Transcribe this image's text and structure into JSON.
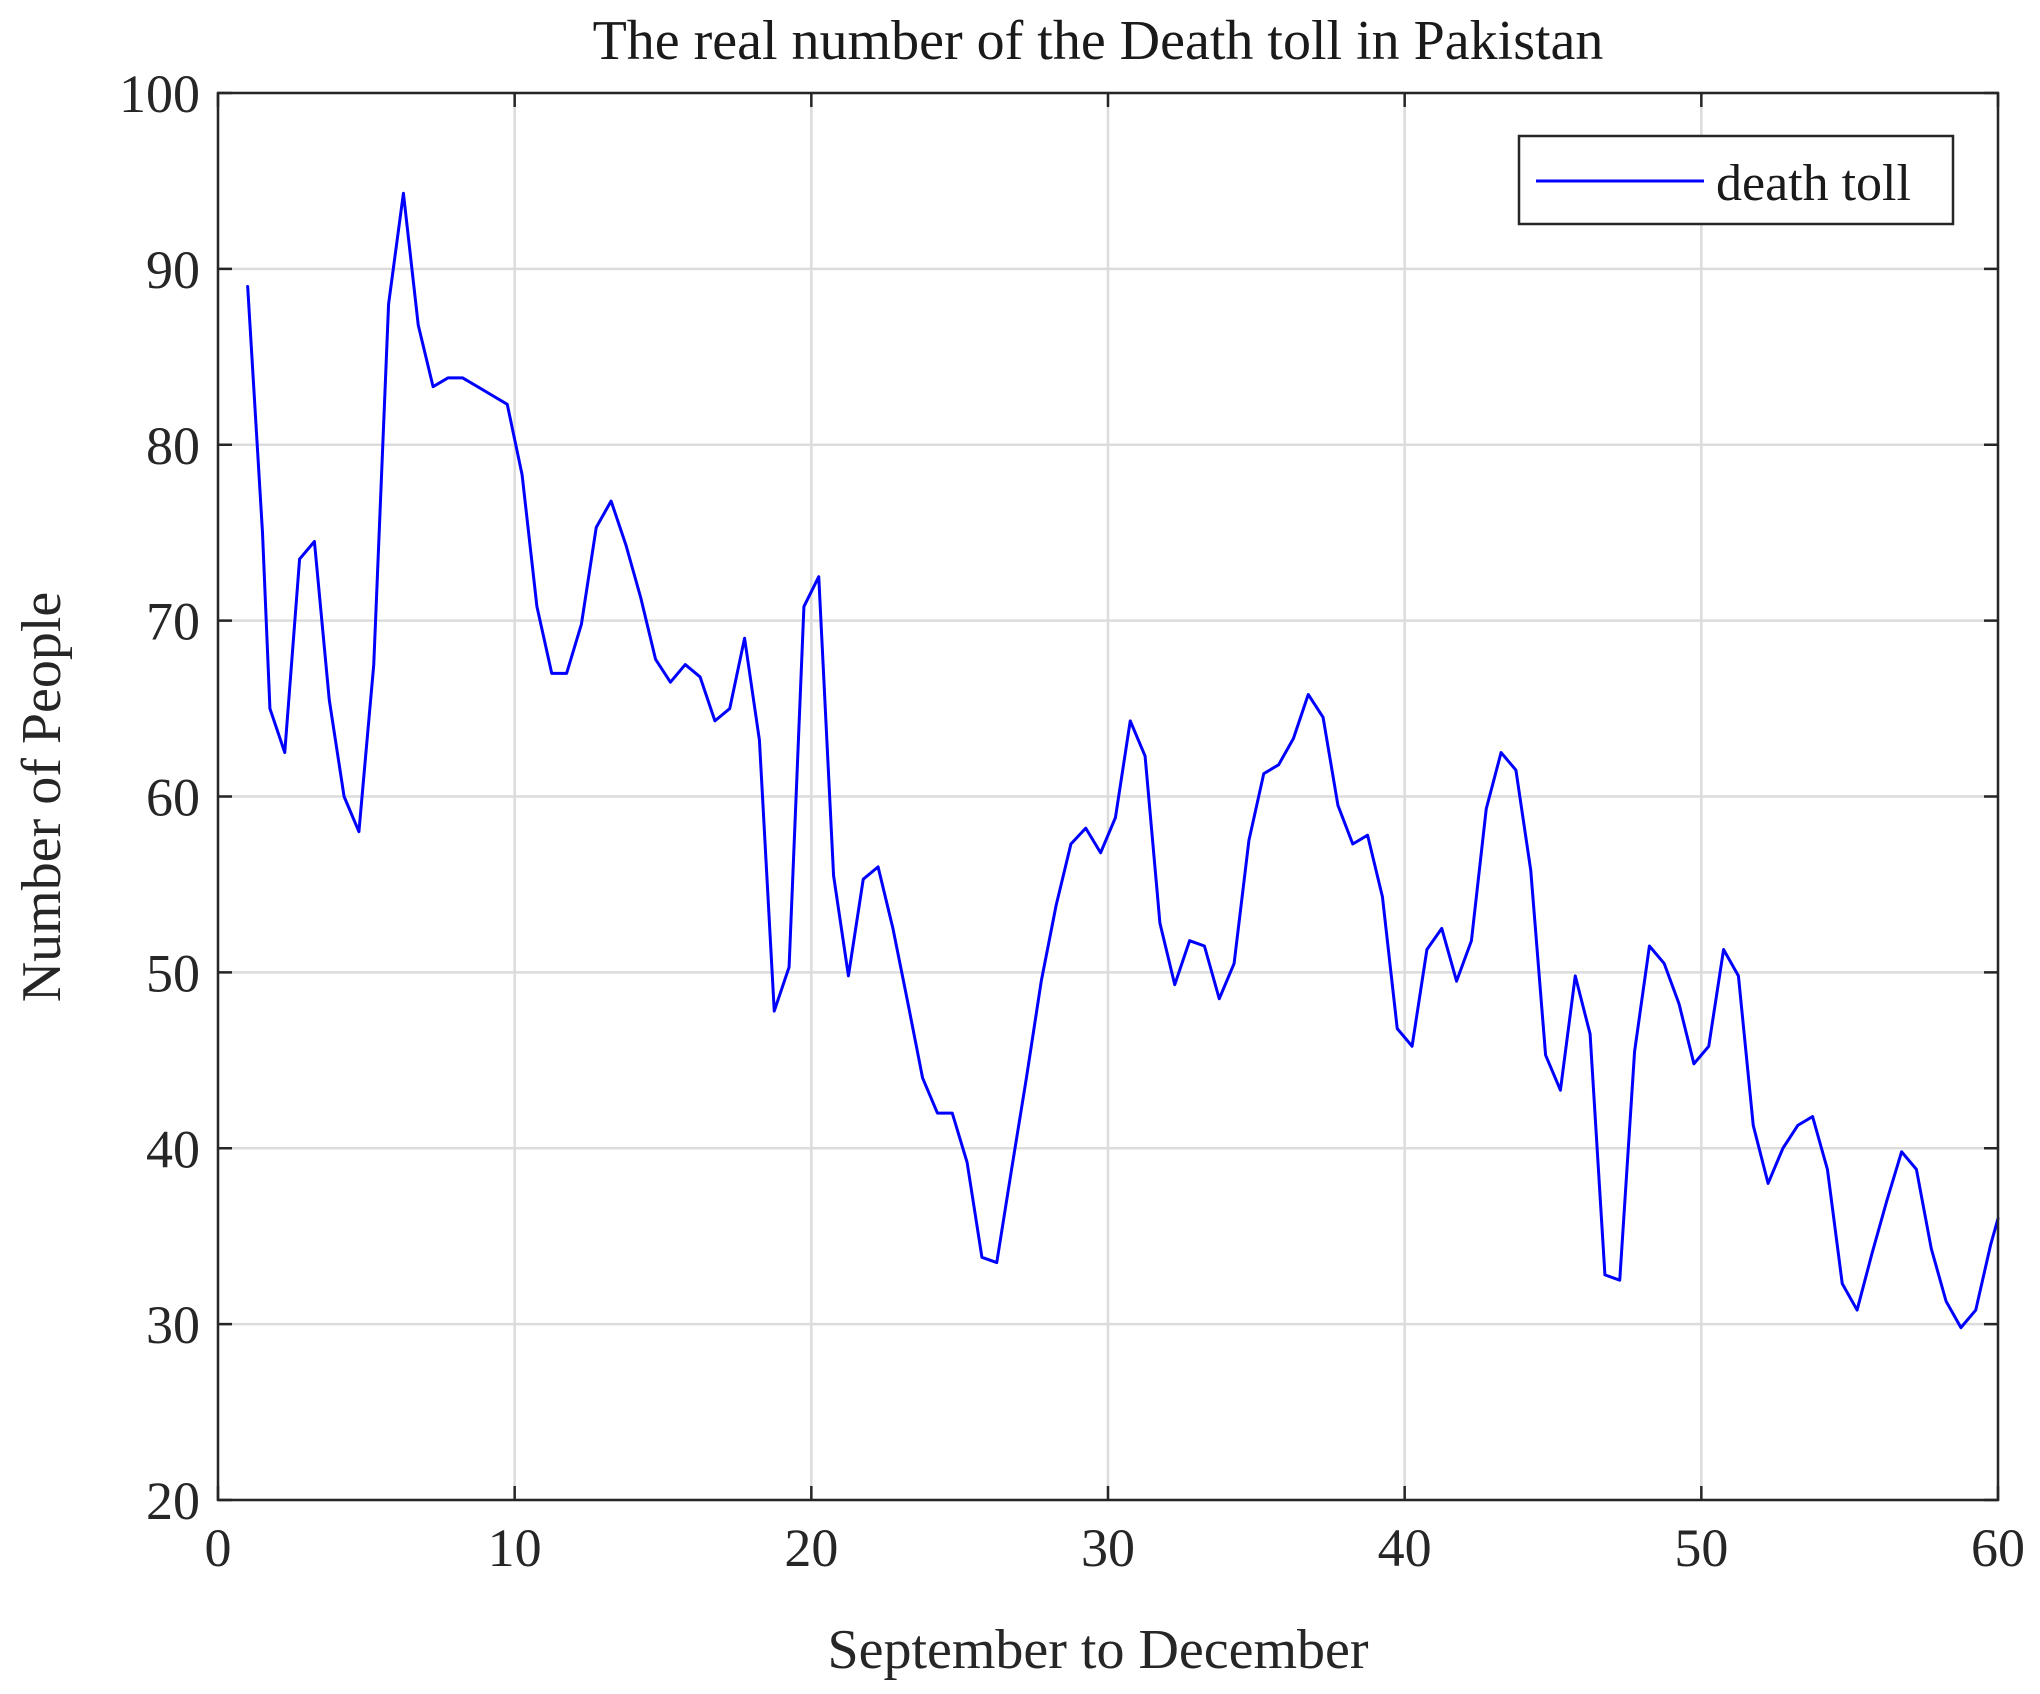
{
  "chart_data": {
    "type": "line",
    "title": "The real number of the Death toll in Pakistan",
    "xlabel": "September to December",
    "ylabel": "Number of People",
    "xlim": [
      0,
      60
    ],
    "ylim": [
      20,
      100
    ],
    "xticks": [
      0,
      10,
      20,
      30,
      40,
      50,
      60
    ],
    "yticks": [
      20,
      30,
      40,
      50,
      60,
      70,
      80,
      90,
      100
    ],
    "grid": true,
    "legend_position": "top-right",
    "series": [
      {
        "name": "death toll",
        "color": "#0000ff",
        "x": [
          1.0,
          1.5,
          1.75,
          2.25,
          2.75,
          3.25,
          3.75,
          4.25,
          4.75,
          5.25,
          5.75,
          6.25,
          6.75,
          7.25,
          7.75,
          8.25,
          8.75,
          9.25,
          9.75,
          10.25,
          10.75,
          11.25,
          11.75,
          12.25,
          12.75,
          13.25,
          13.75,
          14.25,
          14.75,
          15.25,
          15.75,
          16.25,
          16.75,
          17.25,
          17.75,
          18.25,
          18.75,
          19.25,
          19.75,
          20.25,
          20.75,
          21.25,
          21.75,
          22.25,
          22.75,
          23.25,
          23.75,
          24.25,
          24.75,
          25.25,
          25.75,
          26.25,
          26.75,
          27.25,
          27.75,
          28.25,
          28.75,
          29.25,
          29.75,
          30.25,
          30.75,
          31.25,
          31.75,
          32.25,
          32.75,
          33.25,
          33.75,
          34.25,
          34.75,
          35.25,
          35.75,
          36.25,
          36.75,
          37.25,
          37.75,
          38.25,
          38.75,
          39.25,
          39.75,
          40.25,
          40.75,
          41.25,
          41.75,
          42.25,
          42.75,
          43.25,
          43.75,
          44.25,
          44.75,
          45.25,
          45.75,
          46.25,
          46.75,
          47.25,
          47.75,
          48.25,
          48.75,
          49.25,
          49.75,
          50.25,
          50.75,
          51.25,
          51.75,
          52.25,
          52.75,
          53.25,
          53.75,
          54.25,
          54.75,
          55.25,
          55.75,
          56.25,
          56.75,
          57.25,
          57.75,
          58.25,
          58.75,
          59.25,
          59.75,
          60.0
        ],
        "values": [
          89,
          75,
          65,
          62.5,
          73.5,
          74.5,
          65.5,
          60,
          58,
          67.5,
          88,
          94.3,
          86.8,
          83.3,
          83.8,
          83.8,
          83.3,
          82.8,
          82.3,
          78.3,
          70.8,
          67,
          67,
          69.8,
          75.3,
          76.8,
          74.3,
          71.3,
          67.8,
          66.5,
          67.5,
          66.8,
          64.3,
          65,
          69,
          63.2,
          47.8,
          50.3,
          70.8,
          72.5,
          55.5,
          49.8,
          55.3,
          56,
          52.5,
          48.3,
          44,
          42,
          42,
          39.2,
          33.8,
          33.5,
          38.8,
          44,
          49.5,
          53.8,
          57.3,
          58.2,
          56.8,
          58.8,
          64.3,
          62.3,
          52.8,
          49.3,
          51.8,
          51.5,
          48.5,
          50.5,
          57.5,
          61.3,
          61.8,
          63.3,
          65.8,
          64.5,
          59.5,
          57.3,
          57.8,
          54.3,
          46.8,
          45.8,
          51.3,
          52.5,
          49.5,
          51.8,
          59.3,
          62.5,
          61.5,
          55.8,
          45.3,
          43.3,
          49.8,
          46.5,
          32.8,
          32.5,
          45.5,
          51.5,
          50.5,
          48.2,
          44.8,
          45.8,
          51.3,
          49.8,
          41.3,
          38,
          40,
          41.3,
          41.8,
          38.8,
          32.3,
          30.8,
          34,
          37,
          39.8,
          38.8,
          34.3,
          31.3,
          29.8,
          30.8,
          34.5,
          36
        ]
      }
    ]
  }
}
